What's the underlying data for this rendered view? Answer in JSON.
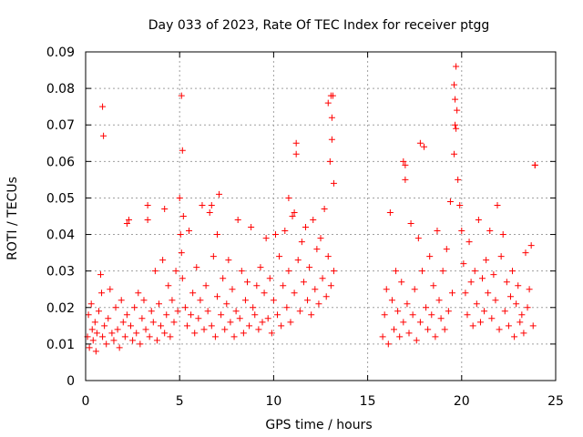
{
  "chart_data": {
    "type": "scatter",
    "title": "Day 033 of 2023, Rate Of TEC Index for receiver ptgg",
    "xlabel": "GPS time / hours",
    "ylabel": "ROTI / TECUs",
    "xlim": [
      0,
      25
    ],
    "ylim": [
      0,
      0.09
    ],
    "x_ticks": [
      0,
      5,
      10,
      15,
      20,
      25
    ],
    "x_tick_labels": [
      "0",
      "5",
      "10",
      "15",
      "20",
      "25"
    ],
    "y_ticks": [
      0,
      0.01,
      0.02,
      0.03,
      0.04,
      0.05,
      0.06,
      0.07,
      0.08,
      0.09
    ],
    "y_tick_labels": [
      "0",
      "0.01",
      "0.02",
      "0.03",
      "0.04",
      "0.05",
      "0.06",
      "0.07",
      "0.08",
      "0.09"
    ],
    "grid": true,
    "legend": "none",
    "marker": "+",
    "series": [
      {
        "color": "#ff0000",
        "x": [
          0.1,
          0.15,
          0.2,
          0.3,
          0.35,
          0.4,
          0.5,
          0.55,
          0.6,
          0.7,
          0.8,
          0.85,
          0.9,
          1.0,
          1.1,
          1.2,
          1.3,
          1.4,
          1.5,
          1.6,
          1.7,
          1.8,
          1.9,
          2.0,
          2.1,
          2.2,
          2.3,
          2.4,
          2.5,
          2.6,
          2.7,
          2.8,
          2.9,
          3.0,
          3.1,
          3.2,
          3.3,
          3.4,
          3.5,
          3.6,
          3.7,
          3.8,
          3.9,
          4.0,
          4.1,
          4.2,
          4.3,
          4.4,
          4.5,
          4.6,
          4.7,
          4.8,
          4.9,
          5.0,
          5.05,
          5.1,
          5.15,
          5.2,
          5.3,
          5.4,
          5.5,
          5.6,
          5.7,
          5.8,
          5.9,
          6.0,
          6.1,
          6.2,
          6.3,
          6.4,
          6.5,
          6.6,
          6.7,
          6.8,
          6.9,
          7.0,
          7.1,
          7.2,
          7.3,
          7.4,
          7.5,
          7.6,
          7.7,
          7.8,
          7.9,
          8.0,
          8.1,
          8.2,
          8.3,
          8.4,
          8.5,
          8.6,
          8.7,
          8.8,
          8.9,
          9.0,
          9.1,
          9.2,
          9.3,
          9.4,
          9.5,
          9.6,
          9.7,
          9.8,
          9.9,
          10.0,
          10.1,
          10.2,
          10.3,
          10.4,
          10.5,
          10.6,
          10.7,
          10.8,
          10.9,
          11.0,
          11.1,
          11.2,
          11.3,
          11.4,
          11.5,
          11.6,
          11.7,
          11.8,
          11.9,
          12.0,
          12.1,
          12.2,
          12.3,
          12.4,
          12.5,
          12.6,
          12.7,
          12.8,
          12.9,
          13.0,
          13.05,
          13.1,
          13.15,
          13.2,
          15.8,
          15.9,
          16.0,
          16.1,
          16.2,
          16.3,
          16.4,
          16.5,
          16.6,
          16.7,
          16.8,
          16.9,
          17.0,
          17.1,
          17.2,
          17.3,
          17.4,
          17.5,
          17.6,
          17.7,
          17.8,
          17.9,
          18.0,
          18.1,
          18.2,
          18.3,
          18.4,
          18.5,
          18.6,
          18.7,
          18.8,
          18.9,
          19.0,
          19.1,
          19.2,
          19.3,
          19.4,
          19.5,
          19.6,
          19.65,
          19.7,
          19.75,
          19.8,
          19.9,
          20.0,
          20.1,
          20.2,
          20.3,
          20.4,
          20.5,
          20.6,
          20.7,
          20.8,
          20.9,
          21.0,
          21.1,
          21.2,
          21.3,
          21.4,
          21.5,
          21.6,
          21.7,
          21.8,
          21.9,
          22.0,
          22.1,
          22.2,
          22.3,
          22.4,
          22.5,
          22.6,
          22.7,
          22.8,
          22.9,
          23.0,
          23.1,
          23.2,
          23.3,
          23.4,
          23.5,
          23.6,
          23.7,
          23.8,
          23.9,
          0.9,
          0.95,
          5.1,
          5.15,
          13.05,
          13.1,
          19.6,
          19.65,
          19.7,
          16.9,
          17.0,
          17.8,
          10.8,
          11.1,
          11.2,
          12.9,
          13.2,
          23.9,
          6.7,
          2.2,
          3.3,
          4.2,
          7.0
        ],
        "y": [
          0.012,
          0.018,
          0.009,
          0.021,
          0.014,
          0.011,
          0.016,
          0.008,
          0.013,
          0.019,
          0.029,
          0.024,
          0.012,
          0.015,
          0.01,
          0.017,
          0.025,
          0.013,
          0.011,
          0.02,
          0.014,
          0.009,
          0.022,
          0.016,
          0.012,
          0.018,
          0.044,
          0.015,
          0.011,
          0.02,
          0.013,
          0.024,
          0.01,
          0.017,
          0.022,
          0.014,
          0.048,
          0.012,
          0.019,
          0.016,
          0.03,
          0.011,
          0.021,
          0.015,
          0.033,
          0.013,
          0.018,
          0.026,
          0.012,
          0.022,
          0.016,
          0.03,
          0.019,
          0.05,
          0.04,
          0.035,
          0.028,
          0.045,
          0.02,
          0.015,
          0.041,
          0.018,
          0.024,
          0.013,
          0.031,
          0.017,
          0.022,
          0.048,
          0.014,
          0.026,
          0.019,
          0.046,
          0.015,
          0.034,
          0.012,
          0.023,
          0.051,
          0.018,
          0.028,
          0.014,
          0.021,
          0.033,
          0.016,
          0.025,
          0.012,
          0.019,
          0.044,
          0.017,
          0.03,
          0.013,
          0.022,
          0.027,
          0.015,
          0.042,
          0.02,
          0.018,
          0.026,
          0.014,
          0.031,
          0.016,
          0.024,
          0.039,
          0.017,
          0.028,
          0.013,
          0.022,
          0.04,
          0.018,
          0.034,
          0.015,
          0.026,
          0.041,
          0.02,
          0.03,
          0.016,
          0.045,
          0.024,
          0.065,
          0.033,
          0.019,
          0.038,
          0.027,
          0.042,
          0.022,
          0.031,
          0.018,
          0.044,
          0.025,
          0.036,
          0.021,
          0.039,
          0.028,
          0.047,
          0.023,
          0.034,
          0.06,
          0.026,
          0.072,
          0.078,
          0.03,
          0.012,
          0.018,
          0.025,
          0.01,
          0.046,
          0.022,
          0.014,
          0.03,
          0.019,
          0.012,
          0.027,
          0.016,
          0.059,
          0.021,
          0.013,
          0.043,
          0.018,
          0.025,
          0.011,
          0.039,
          0.016,
          0.03,
          0.064,
          0.02,
          0.014,
          0.034,
          0.018,
          0.026,
          0.012,
          0.041,
          0.022,
          0.017,
          0.03,
          0.014,
          0.036,
          0.019,
          0.049,
          0.024,
          0.062,
          0.07,
          0.086,
          0.074,
          0.055,
          0.048,
          0.041,
          0.032,
          0.024,
          0.018,
          0.038,
          0.027,
          0.015,
          0.03,
          0.021,
          0.044,
          0.016,
          0.028,
          0.019,
          0.033,
          0.024,
          0.041,
          0.017,
          0.029,
          0.022,
          0.048,
          0.014,
          0.034,
          0.04,
          0.019,
          0.027,
          0.015,
          0.023,
          0.03,
          0.012,
          0.021,
          0.026,
          0.016,
          0.018,
          0.013,
          0.035,
          0.02,
          0.025,
          0.037,
          0.015,
          0.059,
          0.075,
          0.067,
          0.078,
          0.063,
          0.078,
          0.066,
          0.081,
          0.077,
          0.069,
          0.06,
          0.055,
          0.065,
          0.05,
          0.046,
          0.062,
          0.076,
          0.054,
          0.059,
          0.048,
          0.043,
          0.044,
          0.047,
          0.04
        ]
      }
    ]
  }
}
